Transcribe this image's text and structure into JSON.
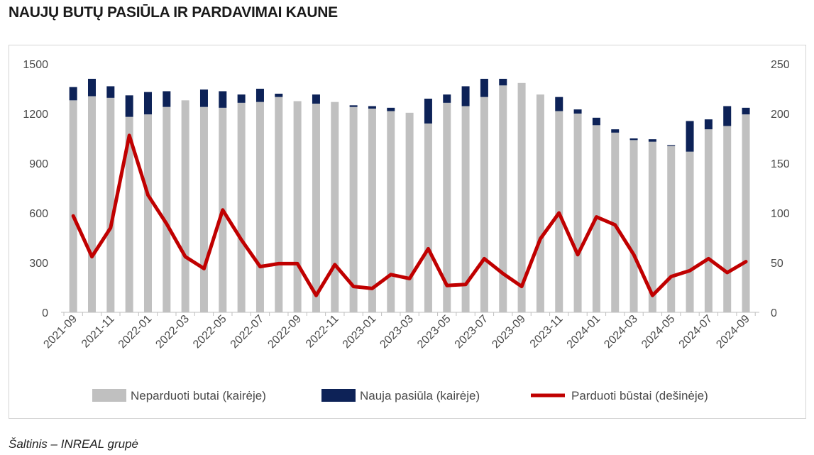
{
  "title": "NAUJŲ BUTŲ PASIŪLA IR PARDAVIMAI KAUNE",
  "source": "Šaltinis – INREAL grupė",
  "colors": {
    "unsold": "#c0c0c0",
    "new": "#0d2257",
    "sold": "#c00000"
  },
  "chart_data": {
    "type": "bar",
    "stacked": true,
    "secondary_axis": true,
    "categories": [
      "2021-09",
      "2021-10",
      "2021-11",
      "2021-12",
      "2022-01",
      "2022-02",
      "2022-03",
      "2022-04",
      "2022-05",
      "2022-06",
      "2022-07",
      "2022-08",
      "2022-09",
      "2022-10",
      "2022-11",
      "2022-12",
      "2023-01",
      "2023-02",
      "2023-03",
      "2023-04",
      "2023-05",
      "2023-06",
      "2023-07",
      "2023-08",
      "2023-09",
      "2023-10",
      "2023-11",
      "2023-12",
      "2024-01",
      "2024-02",
      "2024-03",
      "2024-04",
      "2024-05",
      "2024-06",
      "2024-07",
      "2024-08",
      "2024-09"
    ],
    "x_tick_labels": [
      "2021-09",
      "2021-11",
      "2022-01",
      "2022-03",
      "2022-05",
      "2022-07",
      "2022-09",
      "2022-11",
      "2023-01",
      "2023-03",
      "2023-05",
      "2023-07",
      "2023-09",
      "2023-11",
      "2024-01",
      "2024-03",
      "2024-05",
      "2024-07",
      "2024-09"
    ],
    "series": [
      {
        "name": "Neparduoti butai (kairėje)",
        "type": "bar",
        "axis": "left",
        "values": [
          1280,
          1305,
          1295,
          1180,
          1195,
          1240,
          1280,
          1240,
          1235,
          1265,
          1270,
          1300,
          1275,
          1260,
          1270,
          1240,
          1230,
          1215,
          1205,
          1140,
          1265,
          1245,
          1300,
          1370,
          1385,
          1315,
          1215,
          1200,
          1130,
          1085,
          1040,
          1030,
          1005,
          970,
          1105,
          1125,
          1195
        ]
      },
      {
        "name": "Nauja pasiūla (kairėje)",
        "type": "bar",
        "axis": "left",
        "values": [
          80,
          105,
          70,
          130,
          135,
          95,
          0,
          105,
          100,
          50,
          80,
          20,
          0,
          55,
          0,
          10,
          15,
          20,
          0,
          150,
          50,
          120,
          110,
          40,
          0,
          0,
          85,
          25,
          45,
          20,
          10,
          15,
          5,
          185,
          60,
          120,
          40
        ]
      },
      {
        "name": "Parduoti būstai (dešinėje)",
        "type": "line",
        "axis": "right",
        "values": [
          97,
          56,
          85,
          178,
          118,
          89,
          56,
          44,
          103,
          73,
          46,
          49,
          49,
          17,
          48,
          26,
          24,
          38,
          34,
          64,
          27,
          28,
          54,
          39,
          26,
          74,
          100,
          58,
          96,
          88,
          58,
          17,
          36,
          42,
          54,
          40,
          51
        ]
      }
    ],
    "left_axis": {
      "ylim": [
        0,
        1500
      ],
      "ticks": [
        "0",
        "300",
        "600",
        "900",
        "1200",
        "1500"
      ]
    },
    "right_axis": {
      "ylim": [
        0,
        250
      ],
      "ticks": [
        "0",
        "50",
        "100",
        "150",
        "200",
        "250"
      ]
    },
    "grid": false,
    "legend_position": "bottom"
  }
}
